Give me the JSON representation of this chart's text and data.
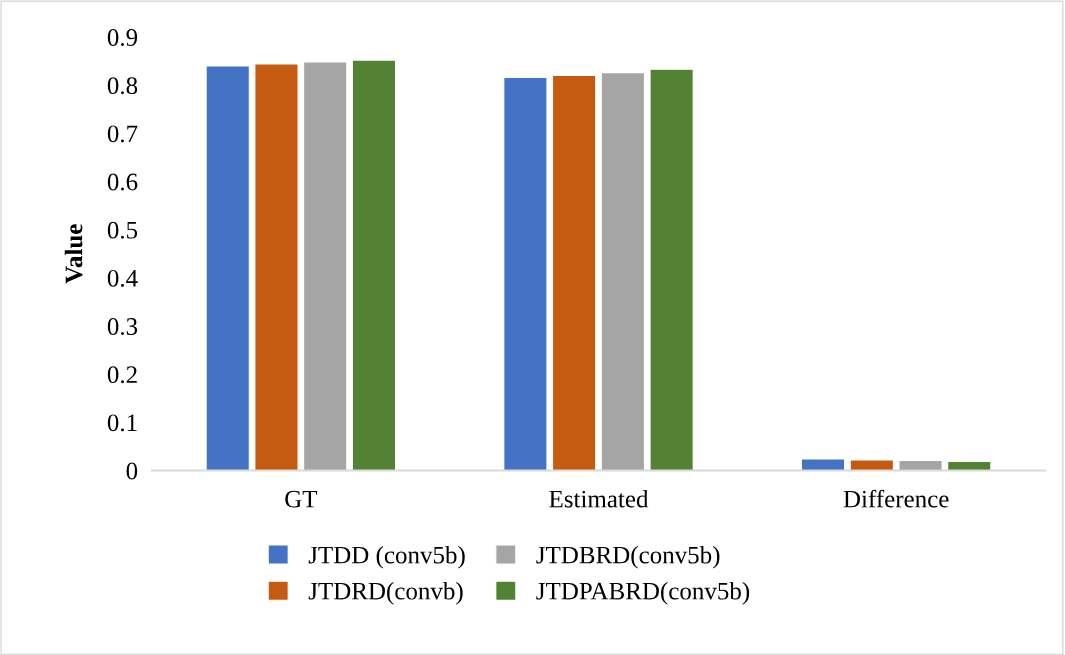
{
  "chart_data": {
    "type": "bar",
    "ylabel": "Value",
    "categories": [
      "GT",
      "Estimated",
      "Difference"
    ],
    "series": [
      {
        "name": "JTDD (conv5b)",
        "color": "#4472c4",
        "values": [
          0.84,
          0.816,
          0.024
        ]
      },
      {
        "name": "JTDRD(convb)",
        "color": "#c55a11",
        "values": [
          0.844,
          0.82,
          0.022
        ]
      },
      {
        "name": "JTDBRD(conv5b)",
        "color": "#a5a5a5",
        "values": [
          0.848,
          0.826,
          0.021
        ]
      },
      {
        "name": "JTDPABRD(conv5b)",
        "color": "#548235",
        "values": [
          0.852,
          0.833,
          0.019
        ]
      }
    ],
    "ylim": [
      0,
      0.9
    ],
    "yticks": [
      0,
      0.1,
      0.2,
      0.3,
      0.4,
      0.5,
      0.6,
      0.7,
      0.8,
      0.9
    ],
    "grid": false,
    "legend": "bottom"
  }
}
